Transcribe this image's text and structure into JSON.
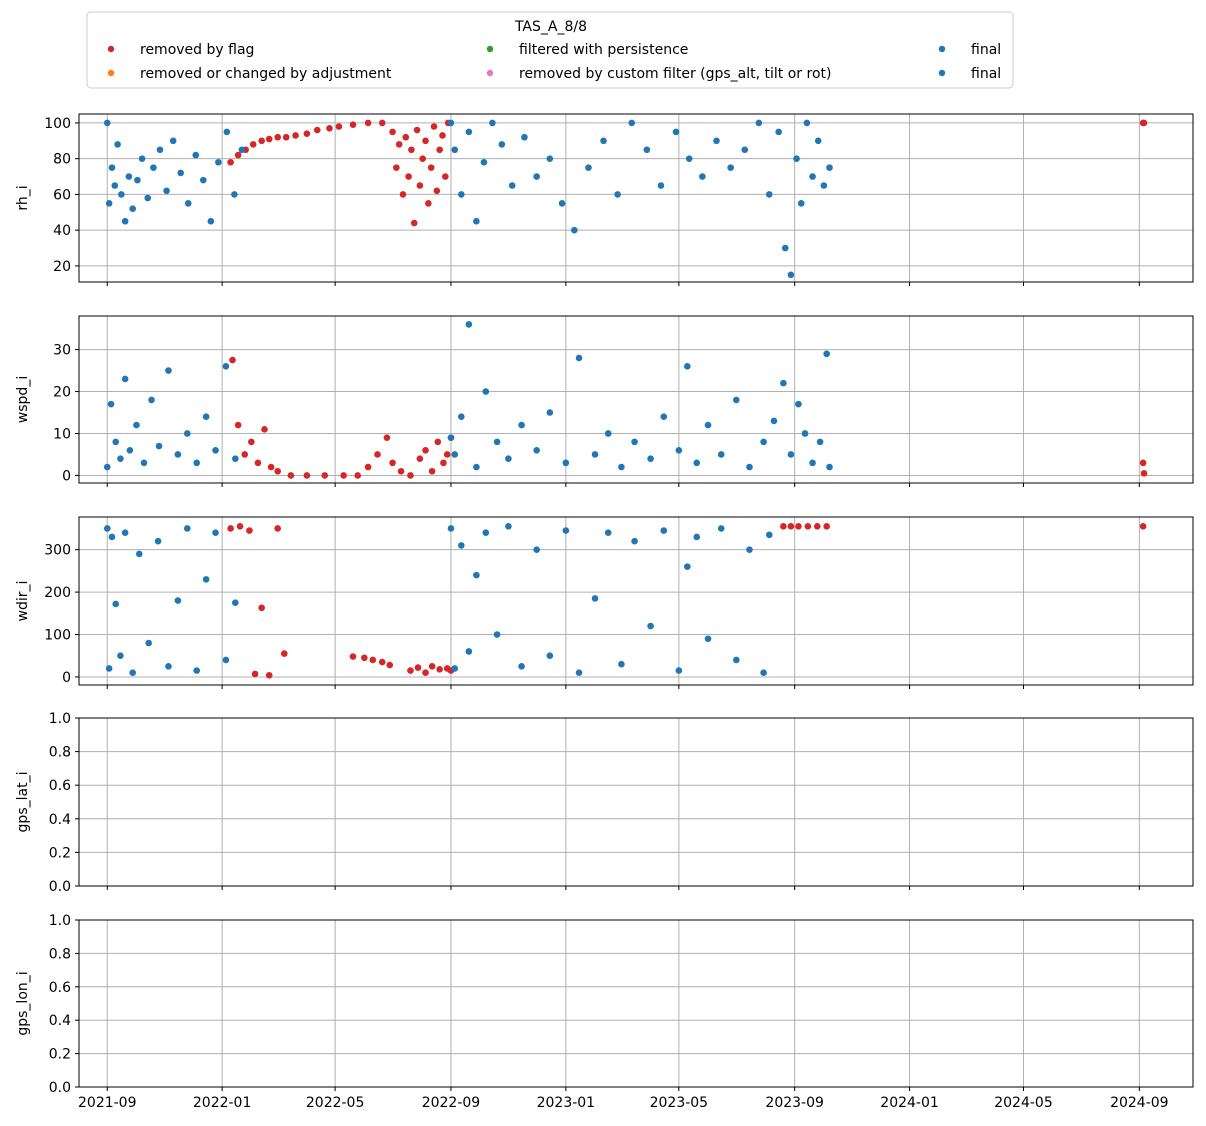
{
  "legend": {
    "title": "TAS_A_8/8",
    "entries": [
      {
        "label": "removed by flag",
        "color": "#d62728"
      },
      {
        "label": "removed or changed by adjustment",
        "color": "#ff7f0e"
      },
      {
        "label": "filtered with persistence",
        "color": "#2ca02c"
      },
      {
        "label": "removed by custom filter (gps_alt, tilt or rot)",
        "color": "#e377c2"
      },
      {
        "label": "final",
        "color": "#1f77b4"
      },
      {
        "label": "final",
        "color": "#1f77b4"
      }
    ]
  },
  "x_ticks": [
    "2021-09",
    "2022-01",
    "2022-05",
    "2022-09",
    "2023-01",
    "2023-05",
    "2023-09",
    "2024-01",
    "2024-05",
    "2024-09"
  ],
  "chart_data": [
    {
      "type": "scatter",
      "ylabel": "rh_i",
      "xlim": [
        "2021-08-02",
        "2024-10-28"
      ],
      "ylim": [
        11,
        105
      ],
      "yticks": [
        "20",
        "40",
        "60",
        "80",
        "100"
      ],
      "grid": true,
      "series": [
        {
          "name": "removed by flag",
          "color": "#d62728",
          "x": [
            "2022-01-10",
            "2022-01-18",
            "2022-01-26",
            "2022-02-03",
            "2022-02-12",
            "2022-02-20",
            "2022-03-01",
            "2022-03-10",
            "2022-03-20",
            "2022-04-01",
            "2022-04-12",
            "2022-04-25",
            "2022-05-05",
            "2022-05-20",
            "2022-06-05",
            "2022-06-20",
            "2022-07-01",
            "2022-07-05",
            "2022-07-08",
            "2022-07-12",
            "2022-07-15",
            "2022-07-18",
            "2022-07-21",
            "2022-07-24",
            "2022-07-27",
            "2022-07-30",
            "2022-08-02",
            "2022-08-05",
            "2022-08-08",
            "2022-08-11",
            "2022-08-14",
            "2022-08-17",
            "2022-08-20",
            "2022-08-23",
            "2022-08-26",
            "2022-08-29",
            "2024-09-05",
            "2024-09-06"
          ],
          "y": [
            78,
            82,
            85,
            88,
            90,
            91,
            92,
            92,
            93,
            94,
            96,
            97,
            98,
            99,
            100,
            100,
            95,
            75,
            88,
            60,
            92,
            70,
            85,
            44,
            96,
            65,
            80,
            90,
            55,
            75,
            98,
            62,
            85,
            93,
            70,
            100,
            100,
            100
          ]
        },
        {
          "name": "final",
          "color": "#1f77b4",
          "x": [
            "2021-09-01",
            "2021-09-03",
            "2021-09-06",
            "2021-09-09",
            "2021-09-12",
            "2021-09-16",
            "2021-09-20",
            "2021-09-24",
            "2021-09-28",
            "2021-10-03",
            "2021-10-08",
            "2021-10-14",
            "2021-10-20",
            "2021-10-27",
            "2021-11-03",
            "2021-11-10",
            "2021-11-18",
            "2021-11-26",
            "2021-12-04",
            "2021-12-12",
            "2021-12-20",
            "2021-12-28",
            "2022-01-06",
            "2022-01-14",
            "2022-01-22",
            "2022-09-01",
            "2022-09-05",
            "2022-09-12",
            "2022-09-20",
            "2022-09-28",
            "2022-10-06",
            "2022-10-15",
            "2022-10-25",
            "2022-11-05",
            "2022-11-18",
            "2022-12-01",
            "2022-12-15",
            "2022-12-28",
            "2023-01-10",
            "2023-01-25",
            "2023-02-10",
            "2023-02-25",
            "2023-03-12",
            "2023-03-28",
            "2023-04-12",
            "2023-04-28",
            "2023-05-12",
            "2023-05-26",
            "2023-06-10",
            "2023-06-25",
            "2023-07-10",
            "2023-07-25",
            "2023-08-05",
            "2023-08-15",
            "2023-08-22",
            "2023-08-28",
            "2023-09-03",
            "2023-09-08",
            "2023-09-14",
            "2023-09-20",
            "2023-09-26",
            "2023-10-02",
            "2023-10-08"
          ],
          "y": [
            100,
            55,
            75,
            65,
            88,
            60,
            45,
            70,
            52,
            68,
            80,
            58,
            75,
            85,
            62,
            90,
            72,
            55,
            82,
            68,
            45,
            78,
            95,
            60,
            85,
            100,
            85,
            60,
            95,
            45,
            78,
            100,
            88,
            65,
            92,
            70,
            80,
            55,
            40,
            75,
            90,
            60,
            100,
            85,
            65,
            95,
            80,
            70,
            90,
            75,
            85,
            100,
            60,
            95,
            30,
            15,
            80,
            55,
            100,
            70,
            90,
            65,
            75
          ]
        }
      ]
    },
    {
      "type": "scatter",
      "ylabel": "wspd_i",
      "xlim": [
        "2021-08-02",
        "2024-10-28"
      ],
      "ylim": [
        -1.8,
        38
      ],
      "yticks": [
        "0",
        "10",
        "20",
        "30"
      ],
      "grid": true,
      "series": [
        {
          "name": "removed by flag",
          "color": "#d62728",
          "x": [
            "2022-01-12",
            "2022-01-18",
            "2022-01-25",
            "2022-02-01",
            "2022-02-08",
            "2022-02-15",
            "2022-02-22",
            "2022-03-01",
            "2022-03-15",
            "2022-04-01",
            "2022-04-20",
            "2022-05-10",
            "2022-05-25",
            "2022-06-05",
            "2022-06-15",
            "2022-06-25",
            "2022-07-01",
            "2022-07-10",
            "2022-07-20",
            "2022-07-30",
            "2022-08-05",
            "2022-08-12",
            "2022-08-18",
            "2022-08-24",
            "2022-08-28",
            "2022-09-01",
            "2024-09-05",
            "2024-09-06"
          ],
          "y": [
            27.5,
            12,
            5,
            8,
            3,
            11,
            2,
            1,
            0,
            0,
            0,
            0,
            0,
            2,
            5,
            9,
            3,
            1,
            0,
            4,
            6,
            1,
            8,
            3,
            5,
            9,
            3,
            0.5
          ]
        },
        {
          "name": "final",
          "color": "#1f77b4",
          "x": [
            "2021-09-01",
            "2021-09-05",
            "2021-09-10",
            "2021-09-15",
            "2021-09-20",
            "2021-09-25",
            "2021-10-02",
            "2021-10-10",
            "2021-10-18",
            "2021-10-26",
            "2021-11-05",
            "2021-11-15",
            "2021-11-25",
            "2021-12-05",
            "2021-12-15",
            "2021-12-25",
            "2022-01-05",
            "2022-01-15",
            "2022-09-01",
            "2022-09-05",
            "2022-09-12",
            "2022-09-20",
            "2022-09-28",
            "2022-10-08",
            "2022-10-20",
            "2022-11-01",
            "2022-11-15",
            "2022-12-01",
            "2022-12-15",
            "2023-01-01",
            "2023-01-15",
            "2023-02-01",
            "2023-02-15",
            "2023-03-01",
            "2023-03-15",
            "2023-04-01",
            "2023-04-15",
            "2023-05-01",
            "2023-05-10",
            "2023-05-20",
            "2023-06-01",
            "2023-06-15",
            "2023-07-01",
            "2023-07-15",
            "2023-07-30",
            "2023-08-10",
            "2023-08-20",
            "2023-08-28",
            "2023-09-05",
            "2023-09-12",
            "2023-09-20",
            "2023-09-28",
            "2023-10-05",
            "2023-10-08"
          ],
          "y": [
            2,
            17,
            8,
            4,
            23,
            6,
            12,
            3,
            18,
            7,
            25,
            5,
            10,
            3,
            14,
            6,
            26,
            4,
            9,
            5,
            14,
            36,
            2,
            20,
            8,
            4,
            12,
            6,
            15,
            3,
            28,
            5,
            10,
            2,
            8,
            4,
            14,
            6,
            26,
            3,
            12,
            5,
            18,
            2,
            8,
            13,
            22,
            5,
            17,
            10,
            3,
            8,
            29,
            2
          ]
        }
      ]
    },
    {
      "type": "scatter",
      "ylabel": "wdir_i",
      "xlim": [
        "2021-08-02",
        "2024-10-28"
      ],
      "ylim": [
        -19,
        377
      ],
      "yticks": [
        "0",
        "100",
        "200",
        "300"
      ],
      "grid": true,
      "series": [
        {
          "name": "removed by flag",
          "color": "#d62728",
          "x": [
            "2022-01-10",
            "2022-01-20",
            "2022-01-30",
            "2022-02-05",
            "2022-02-12",
            "2022-02-20",
            "2022-03-01",
            "2022-03-08",
            "2022-05-20",
            "2022-06-01",
            "2022-06-10",
            "2022-06-20",
            "2022-06-28",
            "2022-07-20",
            "2022-07-28",
            "2022-08-05",
            "2022-08-12",
            "2022-08-20",
            "2022-08-28",
            "2022-09-01",
            "2023-08-20",
            "2023-08-28",
            "2023-09-05",
            "2023-09-15",
            "2023-09-25",
            "2023-10-05",
            "2024-09-05"
          ],
          "y": [
            350,
            355,
            345,
            7,
            163,
            4,
            350,
            55,
            48,
            45,
            40,
            35,
            28,
            15,
            22,
            10,
            25,
            18,
            20,
            15,
            355,
            355,
            355,
            355,
            355,
            355,
            355
          ]
        },
        {
          "name": "final",
          "color": "#1f77b4",
          "x": [
            "2021-09-01",
            "2021-09-03",
            "2021-09-06",
            "2021-09-10",
            "2021-09-15",
            "2021-09-20",
            "2021-09-28",
            "2021-10-05",
            "2021-10-15",
            "2021-10-25",
            "2021-11-05",
            "2021-11-15",
            "2021-11-25",
            "2021-12-05",
            "2021-12-15",
            "2021-12-25",
            "2022-01-05",
            "2022-01-15",
            "2022-09-01",
            "2022-09-05",
            "2022-09-12",
            "2022-09-20",
            "2022-09-28",
            "2022-10-08",
            "2022-10-20",
            "2022-11-01",
            "2022-11-15",
            "2022-12-01",
            "2022-12-15",
            "2023-01-01",
            "2023-01-15",
            "2023-02-01",
            "2023-02-15",
            "2023-03-01",
            "2023-03-15",
            "2023-04-01",
            "2023-04-15",
            "2023-05-01",
            "2023-05-10",
            "2023-05-20",
            "2023-06-01",
            "2023-06-15",
            "2023-07-01",
            "2023-07-15",
            "2023-07-30",
            "2023-08-05"
          ],
          "y": [
            350,
            20,
            330,
            172,
            50,
            340,
            10,
            290,
            80,
            320,
            25,
            180,
            350,
            15,
            230,
            340,
            40,
            175,
            350,
            20,
            310,
            60,
            240,
            340,
            100,
            355,
            25,
            300,
            50,
            345,
            10,
            185,
            340,
            30,
            320,
            120,
            345,
            15,
            260,
            330,
            90,
            350,
            40,
            300,
            10,
            335
          ]
        }
      ]
    },
    {
      "type": "scatter",
      "ylabel": "gps_lat_i",
      "xlim": [
        "2021-08-02",
        "2024-10-28"
      ],
      "ylim": [
        0,
        1
      ],
      "yticks": [
        "0.0",
        "0.2",
        "0.4",
        "0.6",
        "0.8",
        "1.0"
      ],
      "grid": true,
      "series": []
    },
    {
      "type": "scatter",
      "ylabel": "gps_lon_i",
      "xlim": [
        "2021-08-02",
        "2024-10-28"
      ],
      "ylim": [
        0,
        1
      ],
      "yticks": [
        "0.0",
        "0.2",
        "0.4",
        "0.6",
        "0.8",
        "1.0"
      ],
      "grid": true,
      "series": []
    }
  ]
}
